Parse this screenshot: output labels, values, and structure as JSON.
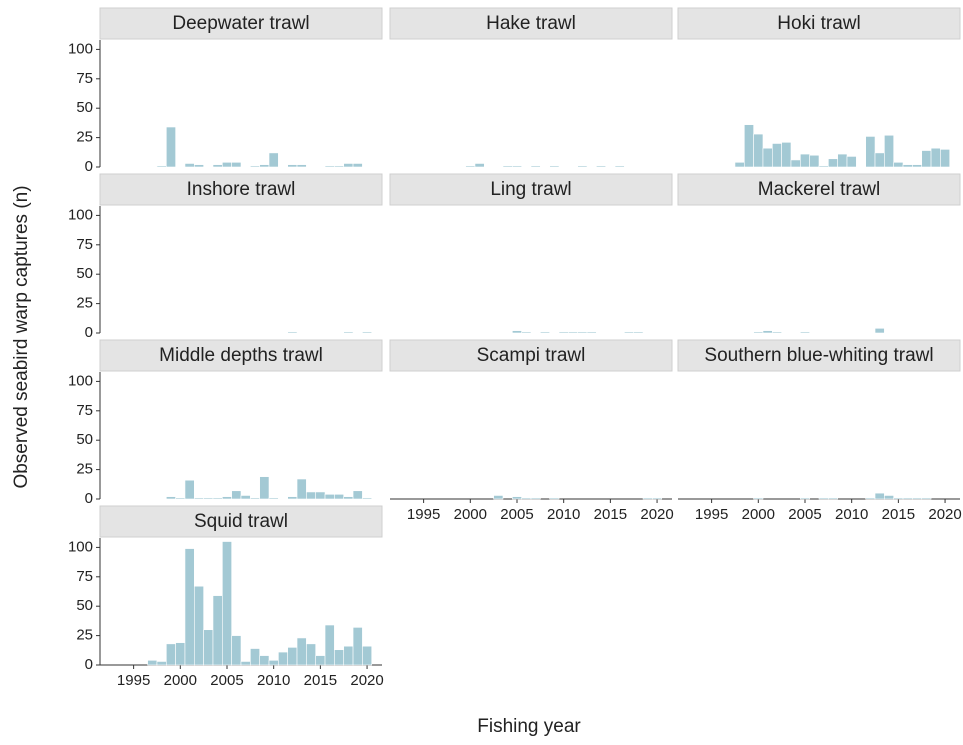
{
  "axis_titles": {
    "x": "Fishing year",
    "y": "Observed seabird warp captures (n)"
  },
  "chart_data": [
    {
      "type": "bar",
      "title": "Deepwater trawl",
      "color": "#a3c9d4",
      "xlim": [
        1991.4,
        2021.6
      ],
      "ylim": [
        0,
        108
      ],
      "yticks": [
        0,
        25,
        50,
        75,
        100
      ],
      "x": [
        1998,
        1999,
        2001,
        2002,
        2004,
        2005,
        2006,
        2008,
        2009,
        2010,
        2012,
        2013,
        2016,
        2017,
        2018,
        2019
      ],
      "values": [
        1,
        34,
        3,
        2,
        2,
        4,
        4,
        1,
        2,
        12,
        2,
        2,
        1,
        1,
        3,
        3
      ]
    },
    {
      "type": "bar",
      "title": "Hake trawl",
      "color": "#a3c9d4",
      "xlim": [
        1991.4,
        2021.6
      ],
      "ylim": [
        0,
        108
      ],
      "x": [
        2000,
        2001,
        2004,
        2005,
        2007,
        2009,
        2012,
        2014,
        2016
      ],
      "values": [
        1,
        3,
        1,
        1,
        1,
        1,
        1,
        1,
        1
      ]
    },
    {
      "type": "bar",
      "title": "Hoki trawl",
      "color": "#a3c9d4",
      "xlim": [
        1991.4,
        2021.6
      ],
      "ylim": [
        0,
        108
      ],
      "x": [
        1998,
        1999,
        2000,
        2001,
        2002,
        2003,
        2004,
        2005,
        2006,
        2007,
        2008,
        2009,
        2010,
        2012,
        2013,
        2014,
        2015,
        2016,
        2017,
        2018,
        2019,
        2020
      ],
      "values": [
        4,
        36,
        28,
        16,
        20,
        21,
        6,
        11,
        10,
        1,
        7,
        11,
        9,
        26,
        12,
        27,
        4,
        2,
        2,
        14,
        16,
        15
      ]
    },
    {
      "type": "bar",
      "title": "Inshore trawl",
      "color": "#a3c9d4",
      "xlim": [
        1991.4,
        2021.6
      ],
      "ylim": [
        0,
        108
      ],
      "yticks": [
        0,
        25,
        50,
        75,
        100
      ],
      "x": [
        2012,
        2018,
        2020
      ],
      "values": [
        1,
        1,
        1
      ]
    },
    {
      "type": "bar",
      "title": "Ling trawl",
      "color": "#a3c9d4",
      "xlim": [
        1991.4,
        2021.6
      ],
      "ylim": [
        0,
        108
      ],
      "x": [
        2005,
        2006,
        2008,
        2010,
        2011,
        2012,
        2013,
        2017,
        2018
      ],
      "values": [
        2,
        1,
        1,
        1,
        1,
        1,
        1,
        1,
        1
      ]
    },
    {
      "type": "bar",
      "title": "Mackerel trawl",
      "color": "#a3c9d4",
      "xlim": [
        1991.4,
        2021.6
      ],
      "ylim": [
        0,
        108
      ],
      "x": [
        2000,
        2001,
        2002,
        2005,
        2013
      ],
      "values": [
        1,
        2,
        1,
        1,
        4
      ]
    },
    {
      "type": "bar",
      "title": "Middle depths trawl",
      "color": "#a3c9d4",
      "xlim": [
        1991.4,
        2021.6
      ],
      "ylim": [
        0,
        108
      ],
      "yticks": [
        0,
        25,
        50,
        75,
        100
      ],
      "x": [
        1999,
        2000,
        2001,
        2002,
        2003,
        2004,
        2005,
        2006,
        2007,
        2008,
        2009,
        2010,
        2012,
        2013,
        2014,
        2015,
        2016,
        2017,
        2018,
        2019,
        2020
      ],
      "values": [
        2,
        1,
        16,
        1,
        1,
        1,
        2,
        7,
        3,
        1,
        19,
        1,
        2,
        17,
        6,
        6,
        4,
        4,
        2,
        7,
        1
      ]
    },
    {
      "type": "bar",
      "title": "Scampi trawl",
      "color": "#a3c9d4",
      "xlim": [
        1991.4,
        2021.6
      ],
      "ylim": [
        0,
        108
      ],
      "xticks": [
        1995,
        2000,
        2005,
        2010,
        2015,
        2020
      ],
      "x": [
        2003,
        2005,
        2006,
        2007,
        2009,
        2019,
        2020
      ],
      "values": [
        3,
        2,
        1,
        1,
        1,
        1,
        1
      ]
    },
    {
      "type": "bar",
      "title": "Southern blue-whiting trawl",
      "color": "#a3c9d4",
      "xlim": [
        1991.4,
        2021.6
      ],
      "ylim": [
        0,
        108
      ],
      "xticks": [
        1995,
        2000,
        2005,
        2010,
        2015,
        2020
      ],
      "x": [
        2000,
        2005,
        2007,
        2008,
        2012,
        2013,
        2014,
        2015,
        2016,
        2017,
        2018
      ],
      "values": [
        1,
        1,
        1,
        1,
        1,
        5,
        3,
        1,
        1,
        1,
        1
      ]
    },
    {
      "type": "bar",
      "title": "Squid trawl",
      "color": "#a3c9d4",
      "xlim": [
        1991.4,
        2021.6
      ],
      "ylim": [
        0,
        108
      ],
      "yticks": [
        0,
        25,
        50,
        75,
        100
      ],
      "xticks": [
        1995,
        2000,
        2005,
        2010,
        2015,
        2020
      ],
      "x": [
        1997,
        1998,
        1999,
        2000,
        2001,
        2002,
        2003,
        2004,
        2005,
        2006,
        2007,
        2008,
        2009,
        2010,
        2011,
        2012,
        2013,
        2014,
        2015,
        2016,
        2017,
        2018,
        2019,
        2020
      ],
      "values": [
        4,
        3,
        18,
        19,
        99,
        67,
        30,
        59,
        105,
        25,
        3,
        14,
        8,
        4,
        11,
        15,
        23,
        18,
        8,
        34,
        13,
        16,
        32,
        16
      ]
    }
  ]
}
